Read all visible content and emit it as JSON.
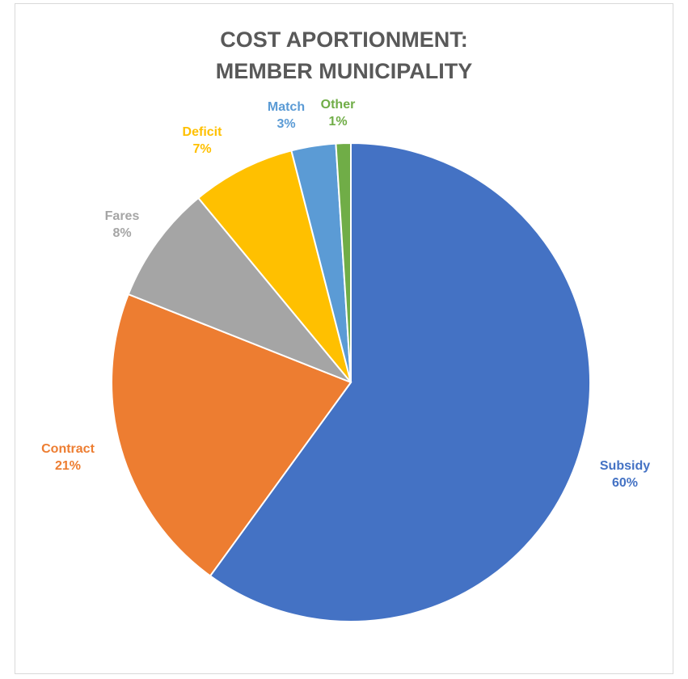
{
  "chart_data": {
    "type": "pie",
    "title_lines": [
      "COST APORTIONMENT:",
      "MEMBER MUNICIPALITY"
    ],
    "slices": [
      {
        "label": "Subsidy",
        "value": 60,
        "value_label": "60%",
        "color": "#4472C4"
      },
      {
        "label": "Contract",
        "value": 21,
        "value_label": "21%",
        "color": "#ED7D31"
      },
      {
        "label": "Fares",
        "value": 8,
        "value_label": "8%",
        "color": "#A5A5A5"
      },
      {
        "label": "Deficit",
        "value": 7,
        "value_label": "7%",
        "color": "#FFC000"
      },
      {
        "label": "Match",
        "value": 3,
        "value_label": "3%",
        "color": "#5B9BD5"
      },
      {
        "label": "Other",
        "value": 1,
        "value_label": "1%",
        "color": "#70AD47"
      }
    ],
    "start": "12 o'clock",
    "direction": "clockwise",
    "legend": "none",
    "label_placement": "outside-end"
  }
}
